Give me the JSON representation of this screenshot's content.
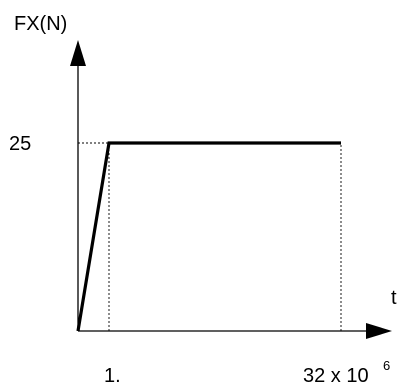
{
  "chart_data": {
    "type": "line",
    "ylabel": "FX(N)",
    "xlabel": "t",
    "y_ticks": [
      {
        "value": 25,
        "label": "25"
      }
    ],
    "x_ticks": [
      {
        "value": 1,
        "label": "1."
      },
      {
        "value": 32,
        "label": "32 x 10",
        "exponent": "6"
      }
    ],
    "xlim": [
      0,
      40
    ],
    "ylim": [
      0,
      33
    ],
    "series": [
      {
        "x": [
          0,
          1,
          32
        ],
        "y": [
          0,
          25,
          25
        ]
      }
    ],
    "reference_lines": [
      {
        "style": "dotted",
        "points": [
          [
            0,
            25
          ],
          [
            1,
            25
          ]
        ]
      },
      {
        "style": "dotted",
        "points": [
          [
            1,
            0
          ],
          [
            1,
            25
          ]
        ]
      },
      {
        "style": "dotted",
        "points": [
          [
            32,
            0
          ],
          [
            32,
            25
          ]
        ]
      }
    ],
    "grid": false,
    "colors": {
      "line": "#000000",
      "axes": "#000000"
    }
  }
}
